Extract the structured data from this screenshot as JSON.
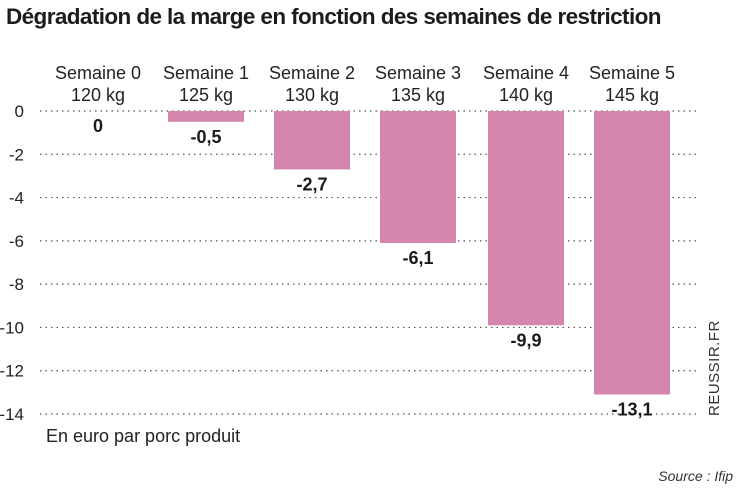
{
  "chart_data": {
    "type": "bar",
    "title": "Dégradation de la marge en fonction des semaines de restriction",
    "categories": [
      "Semaine 0",
      "Semaine 1",
      "Semaine 2",
      "Semaine 3",
      "Semaine 4",
      "Semaine 5"
    ],
    "subcategories": [
      "120 kg",
      "125 kg",
      "130 kg",
      "135 kg",
      "140 kg",
      "145 kg"
    ],
    "values": [
      0,
      -0.5,
      -2.7,
      -6.1,
      -9.9,
      -13.1
    ],
    "value_labels": [
      "0",
      "-0,5",
      "-2,7",
      "-6,1",
      "-9,9",
      "-13,1"
    ],
    "ylim": [
      -14,
      0
    ],
    "yticks": [
      0,
      -2,
      -4,
      -6,
      -8,
      -10,
      -12,
      -14
    ],
    "ytick_labels": [
      "0",
      "-2",
      "-4",
      "-6",
      "-8",
      "-10",
      "-12",
      "-14"
    ],
    "ylabel": "En euro par porc produit",
    "xlabel": "",
    "grid": true,
    "bar_color": "#d586ae"
  },
  "source": "Source : Ifip",
  "watermark": "REUSSIR.FR"
}
